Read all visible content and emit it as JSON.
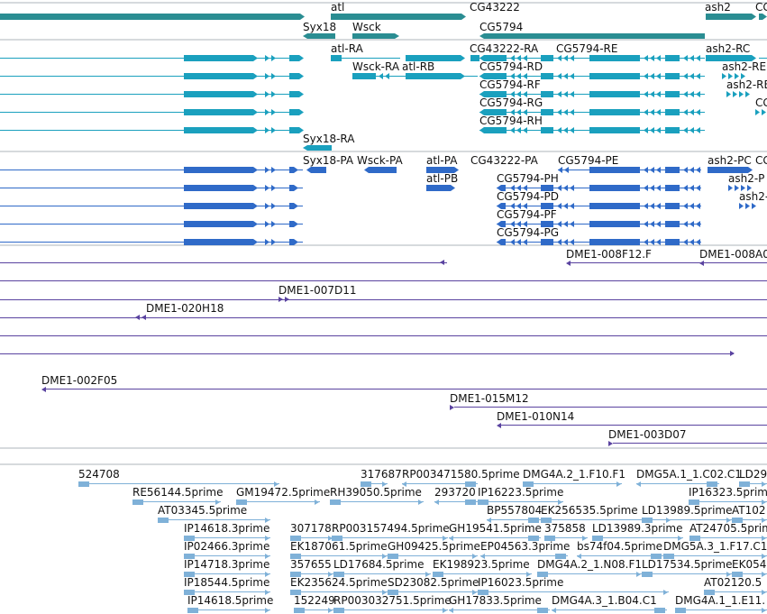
{
  "tracks": {
    "genes": [
      {
        "label": "atl"
      },
      {
        "label": "CG43222"
      },
      {
        "label": "ash2"
      },
      {
        "label": "CG"
      },
      {
        "label": "Syx18"
      },
      {
        "label": "Wsck"
      },
      {
        "label": "CG5794"
      }
    ],
    "transcripts": [
      {
        "label": "atl-RA"
      },
      {
        "label": "CG43222-RA"
      },
      {
        "label": "CG5794-RE"
      },
      {
        "label": "ash2-RC"
      },
      {
        "label": "Wsck-RA"
      },
      {
        "label": "atl-RB"
      },
      {
        "label": "CG5794-RD"
      },
      {
        "label": "ash2-RE"
      },
      {
        "label": "CG5794-RF"
      },
      {
        "label": "ash2-RB"
      },
      {
        "label": "CG5794-RG"
      },
      {
        "label": "CG"
      },
      {
        "label": "CG5794-RH"
      },
      {
        "label": "Syx18-RA"
      }
    ],
    "proteins": [
      {
        "label": "Syx18-PA"
      },
      {
        "label": "Wsck-PA"
      },
      {
        "label": "atl-PA"
      },
      {
        "label": "CG43222-PA"
      },
      {
        "label": "CG5794-PE"
      },
      {
        "label": "ash2-PC"
      },
      {
        "label": "CG"
      },
      {
        "label": "atl-PB"
      },
      {
        "label": "CG5794-PH"
      },
      {
        "label": "ash2-P"
      },
      {
        "label": "CG5794-PD"
      },
      {
        "label": "ash2-"
      },
      {
        "label": "CG5794-PF"
      },
      {
        "label": "CG5794-PG"
      }
    ],
    "clones": [
      {
        "label": "DME1-008F12.F"
      },
      {
        "label": "DME1-008A0"
      },
      {
        "label": "DME1-007D11"
      },
      {
        "label": "DME1-020H18"
      },
      {
        "label": "DME1-002F05"
      },
      {
        "label": "DME1-015M12"
      },
      {
        "label": "DME1-010N14"
      },
      {
        "label": "DME1-003D07"
      }
    ],
    "ests": [
      {
        "label": "524708"
      },
      {
        "label": "317687"
      },
      {
        "label": "RP003471580.5prime"
      },
      {
        "label": "DMG4A.2_1.F10.F1"
      },
      {
        "label": "DMG5A.1_1.C02.C1"
      },
      {
        "label": "LD29"
      },
      {
        "label": "RE56144.5prime"
      },
      {
        "label": "GM19472.5prime"
      },
      {
        "label": "RH39050.5prime"
      },
      {
        "label": "293720"
      },
      {
        "label": "IP16223.5prime"
      },
      {
        "label": "IP16323.5prime"
      },
      {
        "label": "AT03345.5prime"
      },
      {
        "label": "BP557804"
      },
      {
        "label": "EK256535.5prime"
      },
      {
        "label": "LD13989.5prime"
      },
      {
        "label": "AT102"
      },
      {
        "label": "IP14618.3prime"
      },
      {
        "label": "307178"
      },
      {
        "label": "RP003157494.5prime"
      },
      {
        "label": "GH19541.5prime"
      },
      {
        "label": "375858"
      },
      {
        "label": "LD13989.3prime"
      },
      {
        "label": "AT24705.5prime"
      },
      {
        "label": "IP02466.3prime"
      },
      {
        "label": "EK187061.5prime"
      },
      {
        "label": "GH09425.5prime"
      },
      {
        "label": "EP04563.3prime"
      },
      {
        "label": "bs74f04.5prime"
      },
      {
        "label": "DMG5A.3_1.F17.C1"
      },
      {
        "label": "IP14718.3prime"
      },
      {
        "label": "357655"
      },
      {
        "label": "LD17684.5prime"
      },
      {
        "label": "EK198923.5prime"
      },
      {
        "label": "DMG4A.2_1.N08.F1"
      },
      {
        "label": "LD17534.5prime"
      },
      {
        "label": "EK054"
      },
      {
        "label": "IP18544.5prime"
      },
      {
        "label": "EK235624.5prime"
      },
      {
        "label": "SD23082.5prime"
      },
      {
        "label": "IP16023.5prime"
      },
      {
        "label": "AT02120.5"
      },
      {
        "label": "IP14618.5prime"
      },
      {
        "label": "152249"
      },
      {
        "label": "RP003032751.5prime"
      },
      {
        "label": "GH17833.5prime"
      },
      {
        "label": "DMG4A.3_1.B04.C1"
      },
      {
        "label": "DMG4A.1_1.E11."
      }
    ]
  },
  "colors": {
    "gene": "#2a8d92",
    "transcript": "#1aa0be",
    "protein": "#2f6ac8",
    "clone": "#5a43a0",
    "est": "#7fb1d8",
    "separator": "#aeb4bb"
  }
}
